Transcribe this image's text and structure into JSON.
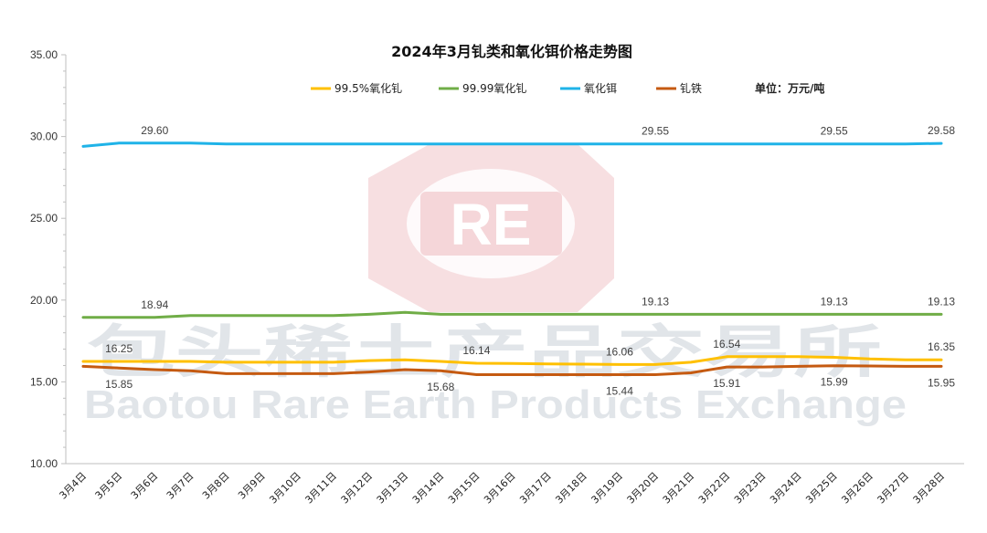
{
  "watermark": {
    "logo_text": "RE",
    "name_cn": "包头稀土产品交易所",
    "name_en": "Baotou Rare Earth Products Exchange",
    "color": "#e8a0a8"
  },
  "chart_data": {
    "type": "line",
    "title": "2024年3月钆类和氧化铒价格走势图",
    "unit_label": "单位：万元/吨",
    "ylim": [
      10.0,
      35.0
    ],
    "yticks": [
      "10.00",
      "15.00",
      "20.00",
      "25.00",
      "30.00",
      "35.00"
    ],
    "grid": false,
    "legend_position": "top",
    "categories": [
      "3月4日",
      "3月5日",
      "3月6日",
      "3月7日",
      "3月8日",
      "3月9日",
      "3月10日",
      "3月11日",
      "3月12日",
      "3月13日",
      "3月14日",
      "3月15日",
      "3月16日",
      "3月17日",
      "3月18日",
      "3月19日",
      "3月20日",
      "3月21日",
      "3月22日",
      "3月23日",
      "3月24日",
      "3月25日",
      "3月26日",
      "3月27日",
      "3月28日"
    ],
    "series": [
      {
        "name": "99.5%氧化钆",
        "color": "#ffc000",
        "values": [
          16.25,
          16.25,
          16.25,
          16.25,
          16.2,
          16.2,
          16.2,
          16.2,
          16.3,
          16.35,
          16.25,
          16.14,
          16.12,
          16.1,
          16.08,
          16.06,
          16.06,
          16.2,
          16.54,
          16.54,
          16.54,
          16.5,
          16.4,
          16.35,
          16.35
        ],
        "labels": [
          {
            "i": 1,
            "text": "16.25",
            "pos": "above"
          },
          {
            "i": 11,
            "text": "16.14",
            "pos": "above"
          },
          {
            "i": 15,
            "text": "16.06",
            "pos": "above"
          },
          {
            "i": 18,
            "text": "16.54",
            "pos": "above"
          },
          {
            "i": 24,
            "text": "16.35",
            "pos": "above"
          }
        ]
      },
      {
        "name": "99.99氧化钆",
        "color": "#70ad47",
        "values": [
          18.94,
          18.94,
          18.94,
          19.05,
          19.05,
          19.05,
          19.05,
          19.05,
          19.13,
          19.25,
          19.13,
          19.13,
          19.13,
          19.13,
          19.13,
          19.13,
          19.13,
          19.13,
          19.13,
          19.13,
          19.13,
          19.13,
          19.13,
          19.13,
          19.13
        ],
        "labels": [
          {
            "i": 2,
            "text": "18.94",
            "pos": "above"
          },
          {
            "i": 16,
            "text": "19.13",
            "pos": "above"
          },
          {
            "i": 21,
            "text": "19.13",
            "pos": "above"
          },
          {
            "i": 24,
            "text": "19.13",
            "pos": "above"
          }
        ]
      },
      {
        "name": "氧化铒",
        "color": "#1fb3e8",
        "values": [
          29.4,
          29.6,
          29.6,
          29.6,
          29.55,
          29.55,
          29.55,
          29.55,
          29.55,
          29.55,
          29.55,
          29.55,
          29.55,
          29.55,
          29.55,
          29.55,
          29.55,
          29.55,
          29.55,
          29.55,
          29.55,
          29.55,
          29.55,
          29.55,
          29.58
        ],
        "labels": [
          {
            "i": 2,
            "text": "29.60",
            "pos": "above"
          },
          {
            "i": 16,
            "text": "29.55",
            "pos": "above"
          },
          {
            "i": 21,
            "text": "29.55",
            "pos": "above"
          },
          {
            "i": 24,
            "text": "29.58",
            "pos": "above"
          }
        ]
      },
      {
        "name": "钆铁",
        "color": "#c55a11",
        "values": [
          15.95,
          15.85,
          15.75,
          15.68,
          15.5,
          15.5,
          15.5,
          15.5,
          15.6,
          15.75,
          15.68,
          15.44,
          15.44,
          15.44,
          15.44,
          15.44,
          15.44,
          15.55,
          15.91,
          15.91,
          15.95,
          15.99,
          15.97,
          15.95,
          15.95
        ],
        "labels": [
          {
            "i": 1,
            "text": "15.85",
            "pos": "below"
          },
          {
            "i": 10,
            "text": "15.68",
            "pos": "below"
          },
          {
            "i": 15,
            "text": "15.44",
            "pos": "below"
          },
          {
            "i": 18,
            "text": "15.91",
            "pos": "below"
          },
          {
            "i": 21,
            "text": "15.99",
            "pos": "below"
          },
          {
            "i": 24,
            "text": "15.95",
            "pos": "below"
          }
        ]
      }
    ]
  }
}
